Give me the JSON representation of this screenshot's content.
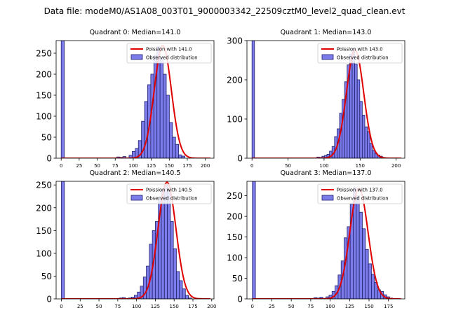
{
  "suptitle": "Data file: modeM0/AS1A08_003T01_9000003342_22509cztM0_level2_quad_clean.evt",
  "colors": {
    "bar_fill": "#7b7bea",
    "bar_edge": "#22226e",
    "poisson_line": "#e00000",
    "axis": "#000000"
  },
  "chart_data": [
    {
      "type": "bar",
      "title": "Quadrant 0: Median=141.0",
      "xlim": [
        -7,
        212
      ],
      "ylim": [
        0,
        280
      ],
      "xticks": [
        0,
        25,
        50,
        75,
        100,
        125,
        150,
        175,
        200
      ],
      "yticks": [
        0,
        50,
        100,
        150,
        200,
        250
      ],
      "bin_width": 4.3,
      "zero_bin_count": 280,
      "bins_start": 77,
      "counts": [
        3,
        2,
        4,
        1,
        7,
        16,
        23,
        42,
        88,
        135,
        175,
        200,
        245,
        265,
        240,
        200,
        150,
        85,
        50,
        33,
        8,
        5
      ],
      "poisson_mean": 141.0,
      "poisson_peak": 268,
      "legend": [
        "Poission with 141.0",
        "Observed distribution"
      ],
      "legend_position": "top-right"
    },
    {
      "type": "bar",
      "title": "Quadrant 1: Median=143.0",
      "xlim": [
        -7,
        212
      ],
      "ylim": [
        0,
        300
      ],
      "xticks": [
        0,
        50,
        100,
        150,
        200
      ],
      "yticks": [
        0,
        100,
        200,
        300
      ],
      "bin_width": 3.5,
      "zero_bin_count": 300,
      "bins_start": 90,
      "counts": [
        3,
        2,
        5,
        7,
        10,
        18,
        30,
        55,
        75,
        115,
        150,
        195,
        238,
        265,
        280,
        240,
        200,
        145,
        110,
        80,
        68,
        38,
        20,
        12,
        8,
        5,
        2
      ],
      "poisson_mean": 143.0,
      "poisson_peak": 276,
      "legend": [
        "Poission with 143.0",
        "Observed distribution"
      ],
      "legend_position": "top-right"
    },
    {
      "type": "bar",
      "title": "Quadrant 2: Median=140.5",
      "xlim": [
        -7,
        203
      ],
      "ylim": [
        0,
        258
      ],
      "xticks": [
        0,
        25,
        50,
        75,
        100,
        125,
        150,
        175,
        200
      ],
      "yticks": [
        0,
        50,
        100,
        150,
        200,
        250
      ],
      "bin_width": 4.0,
      "zero_bin_count": 258,
      "bins_start": 77,
      "counts": [
        2,
        3,
        1,
        2,
        4,
        8,
        15,
        28,
        48,
        72,
        120,
        150,
        170,
        220,
        240,
        250,
        235,
        170,
        110,
        60,
        40,
        22,
        8,
        2
      ],
      "poisson_mean": 140.5,
      "poisson_peak": 256,
      "legend": [
        "Poission with 140.5",
        "Observed distribution"
      ],
      "legend_position": "top-right"
    },
    {
      "type": "bar",
      "title": "Quadrant 3: Median=137.0",
      "xlim": [
        -7,
        196
      ],
      "ylim": [
        0,
        285
      ],
      "xticks": [
        0,
        25,
        50,
        75,
        100,
        125,
        150,
        175
      ],
      "yticks": [
        0,
        50,
        100,
        150,
        200,
        250
      ],
      "bin_width": 3.9,
      "zero_bin_count": 285,
      "bins_start": 79,
      "counts": [
        3,
        2,
        4,
        1,
        5,
        9,
        18,
        32,
        58,
        92,
        148,
        175,
        230,
        270,
        250,
        210,
        170,
        120,
        85,
        60,
        40,
        22,
        18,
        10,
        5,
        2
      ],
      "poisson_mean": 137.0,
      "poisson_peak": 268,
      "legend": [
        "Poission with 137.0",
        "Observed distribution"
      ],
      "legend_position": "top-right"
    }
  ]
}
